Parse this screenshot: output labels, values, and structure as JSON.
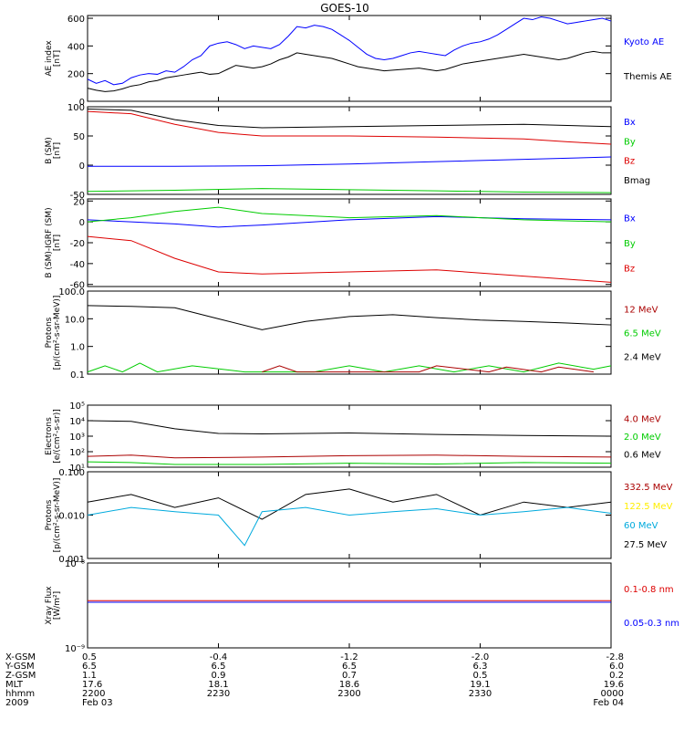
{
  "title": "GOES-10",
  "chart_data": [
    {
      "type": "line",
      "ylabel": [
        "AE index",
        "[nT]"
      ],
      "ylim": [
        0,
        620
      ],
      "yticks": [
        {
          "v": 0,
          "t": "0"
        },
        {
          "v": 200,
          "t": "200"
        },
        {
          "v": 400,
          "t": "400"
        },
        {
          "v": 600,
          "t": "600"
        }
      ],
      "series": [
        {
          "name": "Kyoto AE",
          "color": "#0000ff",
          "x": [
            0,
            1,
            2,
            3,
            4,
            5,
            6,
            7,
            8,
            9,
            10,
            11,
            12,
            13,
            14,
            15,
            16,
            17,
            18,
            19,
            20,
            21,
            22,
            23,
            24,
            25,
            26,
            27,
            28,
            29,
            30,
            31,
            32,
            33,
            34,
            35,
            36,
            37,
            38,
            39,
            40,
            41,
            42,
            43,
            44,
            45,
            46,
            47,
            48,
            49,
            50,
            51,
            52,
            53,
            54,
            55,
            56,
            57,
            58,
            59,
            60
          ],
          "y": [
            160,
            130,
            150,
            120,
            130,
            170,
            190,
            200,
            195,
            220,
            210,
            250,
            300,
            330,
            400,
            420,
            430,
            410,
            380,
            400,
            390,
            380,
            410,
            470,
            540,
            530,
            550,
            540,
            520,
            480,
            440,
            390,
            340,
            310,
            300,
            310,
            330,
            350,
            360,
            350,
            340,
            330,
            370,
            400,
            420,
            430,
            450,
            480,
            520,
            560,
            600,
            590,
            610,
            600,
            580,
            560,
            570,
            580,
            590,
            600,
            580
          ]
        },
        {
          "name": "Themis AE",
          "color": "#000000",
          "x": [
            0,
            1,
            2,
            3,
            4,
            5,
            6,
            7,
            8,
            9,
            10,
            11,
            12,
            13,
            14,
            15,
            16,
            17,
            18,
            19,
            20,
            21,
            22,
            23,
            24,
            25,
            26,
            27,
            28,
            29,
            30,
            31,
            32,
            33,
            34,
            35,
            36,
            37,
            38,
            39,
            40,
            41,
            42,
            43,
            44,
            45,
            46,
            47,
            48,
            49,
            50,
            51,
            52,
            53,
            54,
            55,
            56,
            57,
            58,
            59,
            60
          ],
          "y": [
            95,
            80,
            70,
            75,
            90,
            110,
            120,
            140,
            150,
            170,
            180,
            190,
            200,
            210,
            195,
            200,
            230,
            260,
            250,
            240,
            250,
            270,
            300,
            320,
            350,
            340,
            330,
            320,
            310,
            290,
            270,
            250,
            240,
            230,
            220,
            225,
            230,
            235,
            240,
            230,
            220,
            230,
            250,
            270,
            280,
            290,
            300,
            310,
            320,
            330,
            340,
            330,
            320,
            310,
            300,
            310,
            330,
            350,
            360,
            350,
            350
          ]
        }
      ],
      "legend": [
        {
          "t": "Kyoto AE",
          "c": "#0000ff"
        },
        {
          "t": "Themis AE",
          "c": "#000000"
        }
      ]
    },
    {
      "type": "line",
      "ylabel": [
        "B (SM)",
        "[nT]"
      ],
      "ylim": [
        -50,
        100
      ],
      "yticks": [
        {
          "v": -50,
          "t": "-50"
        },
        {
          "v": 0,
          "t": "0"
        },
        {
          "v": 50,
          "t": "50"
        },
        {
          "v": 100,
          "t": "100"
        }
      ],
      "series": [
        {
          "name": "Bx",
          "color": "#0000ff",
          "x": [
            0,
            10,
            20,
            30,
            40,
            50,
            60
          ],
          "y": [
            -2,
            -2,
            -1,
            2,
            6,
            10,
            14
          ]
        },
        {
          "name": "By",
          "color": "#00cc00",
          "x": [
            0,
            10,
            20,
            30,
            40,
            50,
            60
          ],
          "y": [
            -45,
            -43,
            -40,
            -42,
            -44,
            -46,
            -47
          ]
        },
        {
          "name": "Bz",
          "color": "#dd0000",
          "x": [
            0,
            5,
            10,
            15,
            20,
            30,
            40,
            50,
            55,
            60
          ],
          "y": [
            92,
            88,
            70,
            56,
            50,
            50,
            48,
            45,
            40,
            36
          ]
        },
        {
          "name": "Bmag",
          "color": "#000000",
          "x": [
            0,
            5,
            10,
            15,
            20,
            30,
            40,
            50,
            55,
            60
          ],
          "y": [
            96,
            94,
            78,
            68,
            64,
            66,
            68,
            70,
            68,
            66
          ]
        }
      ],
      "legend": [
        {
          "t": "Bx",
          "c": "#0000ff"
        },
        {
          "t": "By",
          "c": "#00cc00"
        },
        {
          "t": "Bz",
          "c": "#dd0000"
        },
        {
          "t": "Bmag",
          "c": "#000000"
        }
      ]
    },
    {
      "type": "line",
      "ylabel": [
        "B (SM)-IGRF (SM)",
        "[nT]"
      ],
      "ylim": [
        -62,
        22
      ],
      "yticks": [
        {
          "v": -60,
          "t": "-60"
        },
        {
          "v": -40,
          "t": "-40"
        },
        {
          "v": -20,
          "t": "-20"
        },
        {
          "v": 0,
          "t": "0"
        },
        {
          "v": 20,
          "t": "20"
        }
      ],
      "series": [
        {
          "name": "Bx",
          "color": "#0000ff",
          "x": [
            0,
            5,
            10,
            15,
            20,
            30,
            40,
            50,
            60
          ],
          "y": [
            2,
            0,
            -2,
            -5,
            -3,
            2,
            5,
            3,
            2
          ]
        },
        {
          "name": "By",
          "color": "#00cc00",
          "x": [
            0,
            5,
            10,
            15,
            20,
            30,
            40,
            50,
            60
          ],
          "y": [
            0,
            4,
            10,
            14,
            8,
            4,
            6,
            2,
            0
          ]
        },
        {
          "name": "Bz",
          "color": "#dd0000",
          "x": [
            0,
            5,
            10,
            15,
            20,
            30,
            40,
            50,
            55,
            60
          ],
          "y": [
            -14,
            -18,
            -35,
            -48,
            -50,
            -48,
            -46,
            -52,
            -55,
            -58
          ]
        }
      ],
      "legend": [
        {
          "t": "Bx",
          "c": "#0000ff"
        },
        {
          "t": "By",
          "c": "#00cc00"
        },
        {
          "t": "Bz",
          "c": "#dd0000"
        }
      ]
    },
    {
      "type": "line",
      "log": true,
      "ylabel": [
        "Protons",
        "[p/(cm²-s-sr-MeV)]"
      ],
      "ylim": [
        0.1,
        100
      ],
      "yticks": [
        {
          "v": 0.1,
          "t": "0.1"
        },
        {
          "v": 1,
          "t": "1.0"
        },
        {
          "v": 10,
          "t": "10.0"
        },
        {
          "v": 100,
          "t": "100.0"
        }
      ],
      "series": [
        {
          "name": "2.4 MeV",
          "color": "#000000",
          "x": [
            0,
            5,
            10,
            15,
            20,
            25,
            30,
            35,
            40,
            45,
            50,
            55,
            60
          ],
          "y": [
            30,
            28,
            25,
            10,
            4,
            8,
            12,
            14,
            11,
            9,
            8,
            7,
            6
          ]
        },
        {
          "name": "6.5 MeV",
          "color": "#00cc00",
          "x": [
            0,
            2,
            4,
            6,
            8,
            12,
            18,
            26,
            30,
            34,
            38,
            42,
            46,
            50,
            54,
            58,
            60
          ],
          "y": [
            0.12,
            0.2,
            0.12,
            0.25,
            0.12,
            0.2,
            0.12,
            0.12,
            0.2,
            0.12,
            0.2,
            0.12,
            0.2,
            0.12,
            0.25,
            0.15,
            0.2
          ]
        },
        {
          "name": "12 MeV",
          "color": "#aa0000",
          "x": [
            20,
            22,
            24,
            38,
            40,
            46,
            48,
            52,
            54,
            58
          ],
          "y": [
            0.12,
            0.2,
            0.12,
            0.12,
            0.2,
            0.12,
            0.18,
            0.12,
            0.18,
            0.12
          ]
        }
      ],
      "legend": [
        {
          "t": "12 MeV",
          "c": "#aa0000"
        },
        {
          "t": "6.5 MeV",
          "c": "#00cc00"
        },
        {
          "t": "2.4 MeV",
          "c": "#000000"
        }
      ]
    },
    {
      "type": "line",
      "log": true,
      "ylabel": [
        "Electrons",
        "[e/(cm²-s-sr)]"
      ],
      "ylim": [
        10,
        100000
      ],
      "yticks": [
        {
          "v": 10,
          "t": "10¹"
        },
        {
          "v": 100,
          "t": "10²"
        },
        {
          "v": 1000,
          "t": "10³"
        },
        {
          "v": 10000,
          "t": "10⁴"
        },
        {
          "v": 100000,
          "t": "10⁵"
        }
      ],
      "series": [
        {
          "name": "0.6 MeV",
          "color": "#000000",
          "x": [
            0,
            5,
            10,
            15,
            20,
            30,
            40,
            50,
            60
          ],
          "y": [
            10000,
            9000,
            3000,
            1500,
            1400,
            1600,
            1300,
            1100,
            1000
          ]
        },
        {
          "name": "2.0 MeV",
          "color": "#00cc00",
          "x": [
            0,
            5,
            10,
            20,
            30,
            40,
            50,
            60
          ],
          "y": [
            22,
            20,
            15,
            15,
            18,
            16,
            20,
            18
          ]
        },
        {
          "name": "4.0 MeV",
          "color": "#aa0000",
          "x": [
            0,
            5,
            10,
            20,
            30,
            40,
            50,
            60
          ],
          "y": [
            50,
            60,
            40,
            45,
            55,
            60,
            50,
            45
          ]
        }
      ],
      "legend": [
        {
          "t": "4.0 MeV",
          "c": "#aa0000"
        },
        {
          "t": "2.0 MeV",
          "c": "#00cc00"
        },
        {
          "t": "0.6 MeV",
          "c": "#000000"
        }
      ]
    },
    {
      "type": "line",
      "log": true,
      "ylabel": [
        "Protons",
        "[p/(cm²-s-sr-MeV)]"
      ],
      "ylim": [
        0.001,
        0.1
      ],
      "yticks": [
        {
          "v": 0.001,
          "t": "0.001"
        },
        {
          "v": 0.01,
          "t": "0.010"
        },
        {
          "v": 0.1,
          "t": "0.100"
        }
      ],
      "series": [
        {
          "name": "27.5 MeV",
          "color": "#000000",
          "x": [
            0,
            5,
            10,
            15,
            20,
            25,
            30,
            35,
            40,
            45,
            50,
            55,
            60
          ],
          "y": [
            0.02,
            0.03,
            0.015,
            0.025,
            0.008,
            0.03,
            0.04,
            0.02,
            0.03,
            0.01,
            0.02,
            0.015,
            0.02
          ]
        },
        {
          "name": "60 MeV",
          "color": "#00aadd",
          "x": [
            0,
            5,
            10,
            15,
            18,
            20,
            25,
            30,
            35,
            40,
            45,
            50,
            55,
            60
          ],
          "y": [
            0.01,
            0.015,
            0.012,
            0.01,
            0.002,
            0.012,
            0.015,
            0.01,
            0.012,
            0.014,
            0.01,
            0.012,
            0.015,
            0.011
          ]
        }
      ],
      "legend": [
        {
          "t": "332.5 MeV",
          "c": "#aa0000"
        },
        {
          "t": "122.5 MeV",
          "c": "#ffee00"
        },
        {
          "t": "60 MeV",
          "c": "#00aadd"
        },
        {
          "t": "27.5 MeV",
          "c": "#000000"
        }
      ]
    },
    {
      "type": "line",
      "log": true,
      "ylabel": [
        "Xray Flux",
        "[W/m²]"
      ],
      "ylim": [
        1e-09,
        1e-08
      ],
      "yticks": [
        {
          "v": 1e-09,
          "t": "10⁻⁹"
        },
        {
          "v": 1e-08,
          "t": "10⁻⁸"
        }
      ],
      "series": [
        {
          "name": "0.1-0.8 nm",
          "color": "#dd0000",
          "x": [
            0,
            60
          ],
          "y": [
            3.6e-09,
            3.6e-09
          ]
        },
        {
          "name": "0.05-0.3 nm",
          "color": "#0000ff",
          "x": [
            0,
            60
          ],
          "y": [
            3.45e-09,
            3.45e-09
          ]
        }
      ],
      "legend": [
        {
          "t": "0.1-0.8 nm",
          "c": "#dd0000"
        },
        {
          "t": "0.05-0.3 nm",
          "c": "#0000ff"
        }
      ]
    }
  ],
  "x_axis": {
    "row_labels": [
      "X-GSM",
      "Y-GSM",
      "Z-GSM",
      "MLT",
      "hhmm",
      "2009"
    ],
    "columns": [
      {
        "x": 0,
        "vals": [
          "0.5",
          "6.5",
          "1.1",
          "17.6",
          "2200",
          "Feb 03"
        ]
      },
      {
        "x": 15,
        "vals": [
          "-0.4",
          "6.5",
          "0.9",
          "18.1",
          "2230",
          ""
        ]
      },
      {
        "x": 30,
        "vals": [
          "-1.2",
          "6.5",
          "0.7",
          "18.6",
          "2300",
          ""
        ]
      },
      {
        "x": 45,
        "vals": [
          "-2.0",
          "6.3",
          "0.5",
          "19.1",
          "2330",
          ""
        ]
      },
      {
        "x": 60,
        "vals": [
          "-2.8",
          "6.0",
          "0.2",
          "19.6",
          "0000",
          "Feb 04"
        ]
      }
    ]
  }
}
